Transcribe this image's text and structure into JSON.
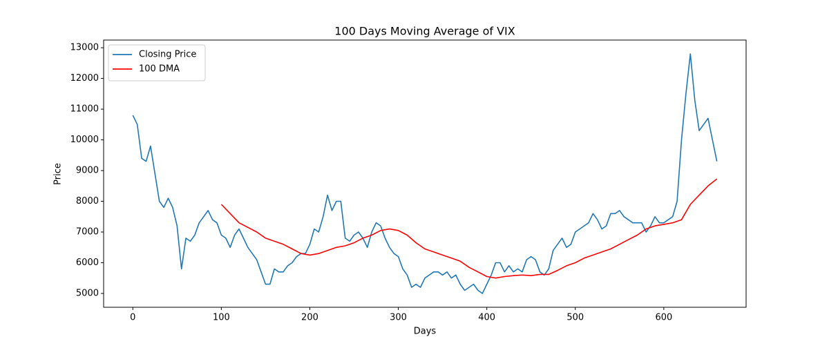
{
  "chart_data": {
    "type": "line",
    "title": "100 Days Moving Average of VIX",
    "x_label": "Days",
    "y_label": "Price",
    "xlim": [
      -33,
      693
    ],
    "ylim": [
      4550,
      13250
    ],
    "xticks": [
      0,
      100,
      200,
      300,
      400,
      500,
      600
    ],
    "yticks": [
      5000,
      6000,
      7000,
      8000,
      9000,
      10000,
      11000,
      12000,
      13000
    ],
    "grid": false,
    "legend": "upper left",
    "series": [
      {
        "name": "Closing Price",
        "color": "#1f77b4",
        "x": [
          0,
          5,
          10,
          15,
          20,
          25,
          30,
          35,
          40,
          45,
          50,
          55,
          60,
          65,
          70,
          75,
          80,
          85,
          90,
          95,
          100,
          105,
          110,
          115,
          120,
          125,
          130,
          135,
          140,
          145,
          150,
          155,
          160,
          165,
          170,
          175,
          180,
          185,
          190,
          195,
          200,
          205,
          210,
          215,
          220,
          225,
          230,
          235,
          240,
          245,
          250,
          255,
          260,
          265,
          270,
          275,
          280,
          285,
          290,
          295,
          300,
          305,
          310,
          315,
          320,
          325,
          330,
          335,
          340,
          345,
          350,
          355,
          360,
          365,
          370,
          375,
          380,
          385,
          390,
          395,
          400,
          405,
          410,
          415,
          420,
          425,
          430,
          435,
          440,
          445,
          450,
          455,
          460,
          465,
          470,
          475,
          480,
          485,
          490,
          495,
          500,
          505,
          510,
          515,
          520,
          525,
          530,
          535,
          540,
          545,
          550,
          555,
          560,
          565,
          570,
          575,
          580,
          585,
          590,
          595,
          600,
          605,
          610,
          615,
          620,
          625,
          630,
          635,
          640,
          645,
          650,
          655,
          660
        ],
        "values": [
          10800,
          10500,
          9400,
          9300,
          9800,
          8900,
          8000,
          7800,
          8100,
          7800,
          7200,
          5800,
          6800,
          6700,
          6900,
          7300,
          7500,
          7700,
          7400,
          7300,
          6900,
          6800,
          6500,
          6900,
          7100,
          6800,
          6500,
          6300,
          6100,
          5700,
          5300,
          5300,
          5800,
          5700,
          5700,
          5900,
          6000,
          6200,
          6300,
          6300,
          6600,
          7100,
          7000,
          7500,
          8200,
          7700,
          8000,
          8000,
          6800,
          6700,
          6900,
          7000,
          6800,
          6500,
          7000,
          7300,
          7200,
          6800,
          6500,
          6300,
          6200,
          5800,
          5600,
          5200,
          5300,
          5200,
          5500,
          5600,
          5700,
          5700,
          5600,
          5700,
          5500,
          5600,
          5300,
          5100,
          5200,
          5300,
          5100,
          5000,
          5300,
          5600,
          6000,
          6000,
          5700,
          5900,
          5700,
          5800,
          5700,
          6100,
          6200,
          6100,
          5700,
          5600,
          5800,
          6400,
          6600,
          6800,
          6500,
          6600,
          7000,
          7100,
          7200,
          7300,
          7600,
          7400,
          7100,
          7200,
          7600,
          7600,
          7700,
          7500,
          7400,
          7300,
          7300,
          7300,
          7000,
          7200,
          7500,
          7300,
          7300,
          7400,
          7500,
          8000,
          10000,
          11500,
          12800,
          11300,
          10300,
          10500,
          10700,
          10000,
          9300
        ]
      },
      {
        "name": "100 DMA",
        "color": "#ff0000",
        "x": [
          100,
          110,
          120,
          130,
          140,
          150,
          160,
          170,
          180,
          190,
          200,
          210,
          220,
          230,
          240,
          250,
          260,
          270,
          280,
          290,
          300,
          310,
          320,
          330,
          340,
          350,
          360,
          370,
          380,
          390,
          400,
          410,
          420,
          430,
          440,
          450,
          460,
          470,
          480,
          490,
          500,
          510,
          520,
          530,
          540,
          550,
          560,
          570,
          580,
          590,
          600,
          610,
          620,
          630,
          640,
          650,
          660
        ],
        "values": [
          7900,
          7600,
          7300,
          7150,
          7000,
          6800,
          6700,
          6600,
          6450,
          6300,
          6250,
          6300,
          6400,
          6500,
          6550,
          6650,
          6800,
          6900,
          7050,
          7100,
          7050,
          6900,
          6650,
          6450,
          6350,
          6250,
          6150,
          6050,
          5850,
          5700,
          5550,
          5500,
          5550,
          5580,
          5600,
          5580,
          5620,
          5620,
          5750,
          5900,
          6000,
          6150,
          6250,
          6350,
          6450,
          6600,
          6750,
          6900,
          7100,
          7200,
          7250,
          7300,
          7400,
          7900,
          8200,
          8500,
          8730
        ]
      }
    ]
  }
}
